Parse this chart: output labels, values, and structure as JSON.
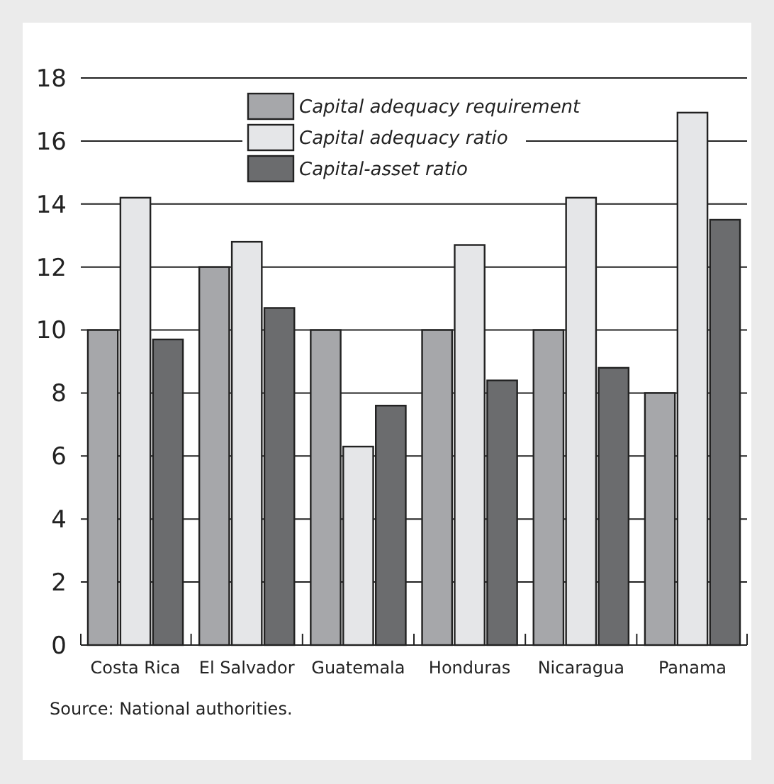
{
  "chart_data": {
    "type": "bar",
    "categories": [
      "Costa Rica",
      "El Salvador",
      "Guatemala",
      "Honduras",
      "Nicaragua",
      "Panama"
    ],
    "series": [
      {
        "name": "Capital adequacy requirement",
        "color": "#a6a7aa",
        "values": [
          10,
          12,
          10,
          10,
          10,
          8
        ]
      },
      {
        "name": "Capital adequacy ratio",
        "color": "#e5e6e8",
        "values": [
          14.2,
          12.8,
          6.3,
          12.7,
          14.2,
          16.9
        ]
      },
      {
        "name": "Capital-asset ratio",
        "color": "#6b6c6e",
        "values": [
          9.7,
          10.7,
          7.6,
          8.4,
          8.8,
          13.5
        ]
      }
    ],
    "ylim": [
      0,
      18
    ],
    "yticks": [
      0,
      2,
      4,
      6,
      8,
      10,
      12,
      14,
      16,
      18
    ],
    "grid": "y",
    "legend": "top",
    "annotations": [
      "Source: National authorities."
    ]
  }
}
